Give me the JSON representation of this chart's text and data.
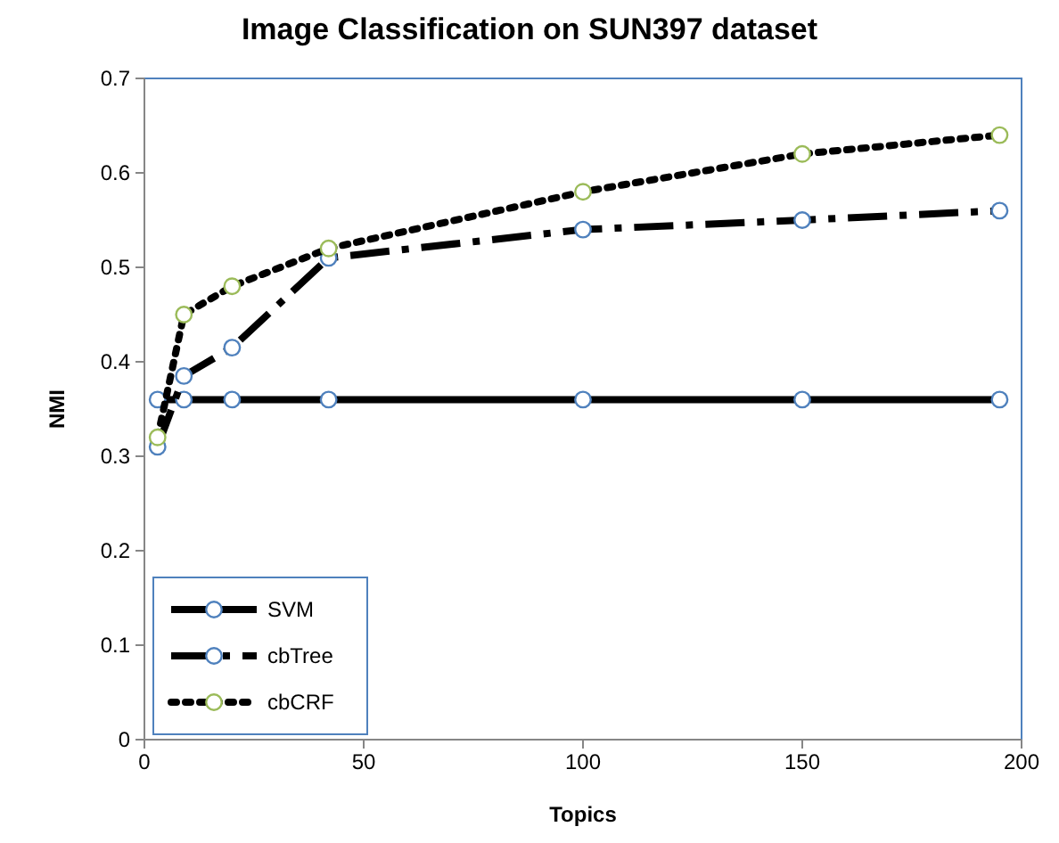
{
  "chart_data": {
    "type": "line",
    "title": "Image Classification on SUN397 dataset",
    "xlabel": "Topics",
    "ylabel": "NMI",
    "x": [
      3,
      9,
      20,
      42,
      100,
      150,
      195
    ],
    "series": [
      {
        "name": "SVM",
        "color": "#000000",
        "line_style": "solid",
        "colors": [
          "#4f81bd",
          "#4f81bd",
          "#4f81bd",
          "#4f81bd",
          "#4f81bd",
          "#4f81bd",
          "#4f81bd"
        ],
        "values": [
          0.36,
          0.36,
          0.36,
          0.36,
          0.36,
          0.36,
          0.36
        ]
      },
      {
        "name": "cbTree",
        "color": "#000000",
        "line_style": "dashed",
        "colors": [
          "#4f81bd",
          "#4f81bd",
          "#4f81bd",
          "#4f81bd",
          "#4f81bd",
          "#4f81bd",
          "#4f81bd"
        ],
        "values": [
          0.31,
          0.385,
          0.415,
          0.51,
          0.54,
          0.55,
          0.56
        ]
      },
      {
        "name": "cbCRF",
        "color": "#000000",
        "line_style": "dotted",
        "colors": [
          "#9bbb59",
          "#9bbb59",
          "#9bbb59",
          "#9bbb59",
          "#9bbb59",
          "#9bbb59",
          "#9bbb59"
        ],
        "values": [
          0.32,
          0.45,
          0.48,
          0.52,
          0.58,
          0.62,
          0.64
        ]
      }
    ],
    "xlim": [
      0,
      200
    ],
    "xticks": [
      0,
      50,
      100,
      150,
      200
    ],
    "ylim": [
      0,
      0.7
    ],
    "yticks": [
      0,
      0.1,
      0.2,
      0.3,
      0.4,
      0.5,
      0.6,
      0.7
    ],
    "marker": "circle",
    "grid": false,
    "legend": "bottom left"
  }
}
